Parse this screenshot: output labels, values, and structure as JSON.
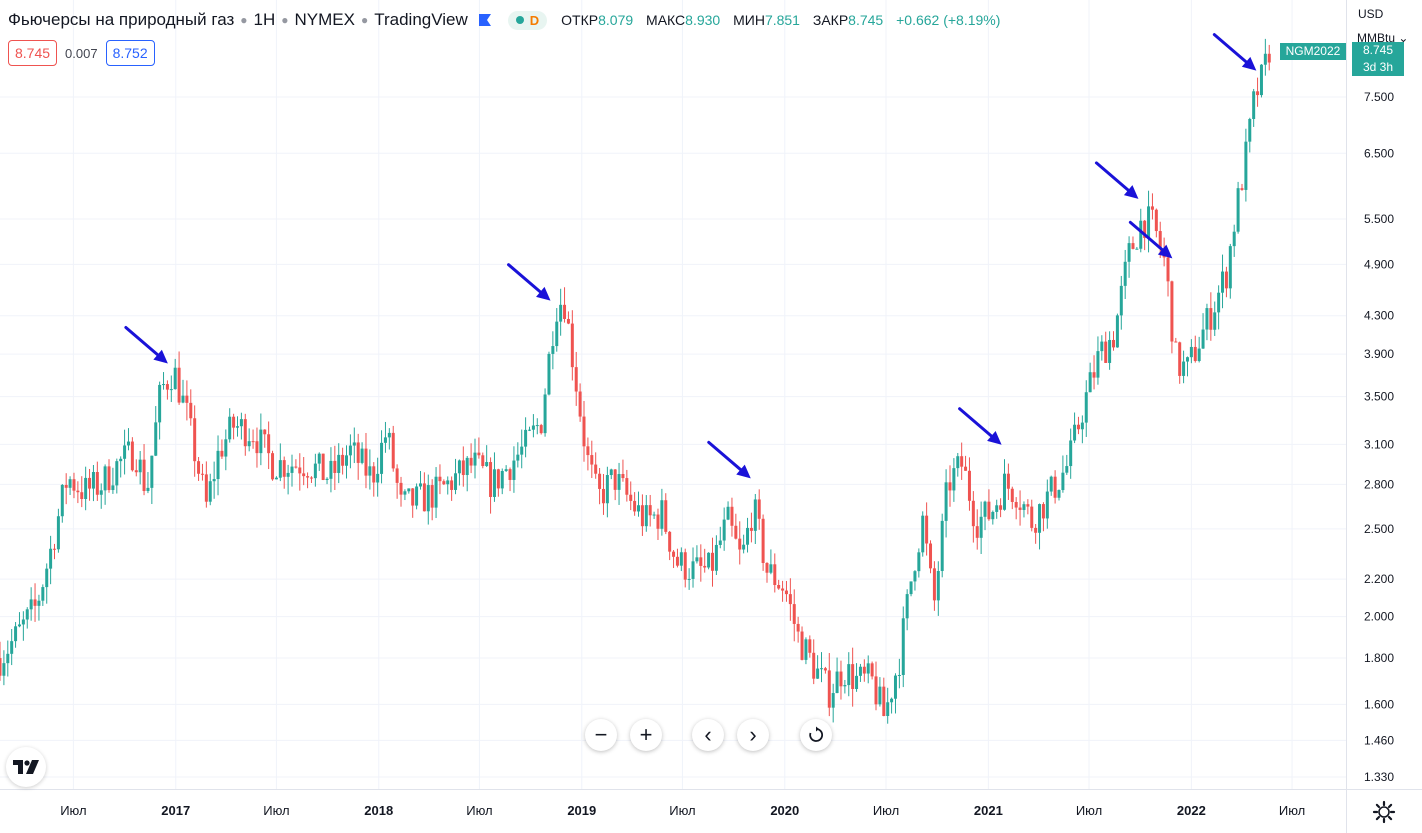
{
  "header": {
    "title": "Фьючерсы на природный газ",
    "interval": "1Н",
    "exchange": "NYMEX",
    "source": "TradingView",
    "status_letter": "D",
    "open_label": "ОТКР",
    "open": "8.079",
    "high_label": "МАКС",
    "high": "8.930",
    "low_label": "МИН",
    "low": "7.851",
    "close_label": "ЗАКР",
    "close": "8.745",
    "change": "+0.662 (+8.19%)"
  },
  "quote": {
    "bid": "8.745",
    "spread": "0.007",
    "ask": "8.752"
  },
  "price_axis": {
    "currency": "USD",
    "unit": "MMBtu"
  },
  "last_price": {
    "symbol": "NGM2022",
    "value": "8.745",
    "countdown": "3d 3h"
  },
  "colors": {
    "up": "#26a69a",
    "down": "#ef5350",
    "arrow": "#1a12d8",
    "grid": "#f0f3fa"
  },
  "controls": {
    "zoom_out": "−",
    "zoom_in": "+",
    "back": "‹",
    "forward": "›"
  },
  "chart_data": {
    "type": "candlestick",
    "interval": "1W",
    "scale": "log",
    "ylim": [
      1.29,
      9.6
    ],
    "y_ticks": [
      "7.500",
      "6.500",
      "5.500",
      "4.900",
      "4.300",
      "3.900",
      "3.500",
      "3.100",
      "2.800",
      "2.500",
      "2.200",
      "2.000",
      "1.800",
      "1.600",
      "1.460",
      "1.330"
    ],
    "x_ticks": [
      {
        "date": "2016-07-01",
        "label": "Июл"
      },
      {
        "date": "2017-01-01",
        "label": "2017"
      },
      {
        "date": "2017-07-01",
        "label": "Июл"
      },
      {
        "date": "2018-01-01",
        "label": "2018"
      },
      {
        "date": "2018-07-01",
        "label": "Июл"
      },
      {
        "date": "2019-01-01",
        "label": "2019"
      },
      {
        "date": "2019-07-01",
        "label": "Июл"
      },
      {
        "date": "2020-01-01",
        "label": "2020"
      },
      {
        "date": "2020-07-01",
        "label": "Июл"
      },
      {
        "date": "2021-01-01",
        "label": "2021"
      },
      {
        "date": "2021-07-01",
        "label": "Июл"
      },
      {
        "date": "2022-01-01",
        "label": "2022"
      },
      {
        "date": "2022-07-01",
        "label": "Июл"
      }
    ],
    "x_range": [
      "2016-02-20",
      "2022-10-06"
    ],
    "path": [
      [
        "2016-02-20",
        1.8
      ],
      [
        "2016-03-20",
        1.9
      ],
      [
        "2016-04-25",
        2.05
      ],
      [
        "2016-05-20",
        2.35
      ],
      [
        "2016-06-20",
        2.85
      ],
      [
        "2016-07-20",
        2.75
      ],
      [
        "2016-08-20",
        2.8
      ],
      [
        "2016-09-20",
        2.95
      ],
      [
        "2016-10-20",
        3.05
      ],
      [
        "2016-11-10",
        2.75
      ],
      [
        "2016-12-05",
        3.55
      ],
      [
        "2016-12-28",
        3.75
      ],
      [
        "2017-01-20",
        3.35
      ],
      [
        "2017-02-25",
        2.65
      ],
      [
        "2017-03-20",
        3.05
      ],
      [
        "2017-04-15",
        3.25
      ],
      [
        "2017-05-20",
        3.2
      ],
      [
        "2017-06-25",
        2.95
      ],
      [
        "2017-07-25",
        2.95
      ],
      [
        "2017-08-25",
        2.95
      ],
      [
        "2017-10-05",
        2.85
      ],
      [
        "2017-11-10",
        3.05
      ],
      [
        "2017-12-20",
        2.85
      ],
      [
        "2018-01-15",
        3.2
      ],
      [
        "2018-02-10",
        2.65
      ],
      [
        "2018-03-20",
        2.7
      ],
      [
        "2018-04-20",
        2.75
      ],
      [
        "2018-05-20",
        2.85
      ],
      [
        "2018-06-20",
        2.95
      ],
      [
        "2018-07-25",
        2.8
      ],
      [
        "2018-08-25",
        2.95
      ],
      [
        "2018-09-25",
        3.1
      ],
      [
        "2018-10-20",
        3.3
      ],
      [
        "2018-11-15",
        4.4
      ],
      [
        "2018-11-30",
        4.5
      ],
      [
        "2018-12-20",
        3.7
      ],
      [
        "2019-01-10",
        3.0
      ],
      [
        "2019-01-30",
        2.7
      ],
      [
        "2019-02-28",
        2.85
      ],
      [
        "2019-03-25",
        2.7
      ],
      [
        "2019-04-25",
        2.55
      ],
      [
        "2019-05-25",
        2.6
      ],
      [
        "2019-06-20",
        2.3
      ],
      [
        "2019-07-20",
        2.25
      ],
      [
        "2019-08-20",
        2.25
      ],
      [
        "2019-09-20",
        2.55
      ],
      [
        "2019-10-15",
        2.3
      ],
      [
        "2019-11-05",
        2.65
      ],
      [
        "2019-11-30",
        2.25
      ],
      [
        "2020-01-01",
        2.15
      ],
      [
        "2020-01-25",
        1.9
      ],
      [
        "2020-02-25",
        1.75
      ],
      [
        "2020-03-20",
        1.65
      ],
      [
        "2020-04-15",
        1.75
      ],
      [
        "2020-05-10",
        1.7
      ],
      [
        "2020-06-05",
        1.7
      ],
      [
        "2020-06-28",
        1.55
      ],
      [
        "2020-07-25",
        1.8
      ],
      [
        "2020-08-20",
        2.3
      ],
      [
        "2020-09-05",
        2.55
      ],
      [
        "2020-09-25",
        2.05
      ],
      [
        "2020-10-20",
        2.8
      ],
      [
        "2020-11-15",
        2.95
      ],
      [
        "2020-12-10",
        2.55
      ],
      [
        "2021-01-05",
        2.6
      ],
      [
        "2021-01-30",
        2.8
      ],
      [
        "2021-02-20",
        2.75
      ],
      [
        "2021-03-20",
        2.55
      ],
      [
        "2021-04-25",
        2.75
      ],
      [
        "2021-05-25",
        2.95
      ],
      [
        "2021-06-20",
        3.4
      ],
      [
        "2021-07-20",
        3.9
      ],
      [
        "2021-08-15",
        4.1
      ],
      [
        "2021-09-10",
        5.0
      ],
      [
        "2021-10-05",
        5.5
      ],
      [
        "2021-10-25",
        5.4
      ],
      [
        "2021-11-15",
        4.9
      ],
      [
        "2021-12-05",
        3.8
      ],
      [
        "2021-12-25",
        3.75
      ],
      [
        "2022-01-20",
        4.1
      ],
      [
        "2022-02-10",
        4.4
      ],
      [
        "2022-03-05",
        4.8
      ],
      [
        "2022-03-20",
        5.5
      ],
      [
        "2022-04-10",
        6.5
      ],
      [
        "2022-04-25",
        7.5
      ],
      [
        "2022-05-10",
        7.9
      ],
      [
        "2022-05-25",
        8.7
      ]
    ],
    "highlighted_peaks": [
      {
        "date": "2016-12-25",
        "price": 3.75
      },
      {
        "date": "2018-11-13",
        "price": 4.4
      },
      {
        "date": "2019-11-08",
        "price": 2.8
      },
      {
        "date": "2021-02-01",
        "price": 3.05
      },
      {
        "date": "2021-10-05",
        "price": 5.7
      },
      {
        "date": "2021-12-05",
        "price": 4.9
      },
      {
        "date": "2022-05-05",
        "price": 7.9
      }
    ]
  }
}
